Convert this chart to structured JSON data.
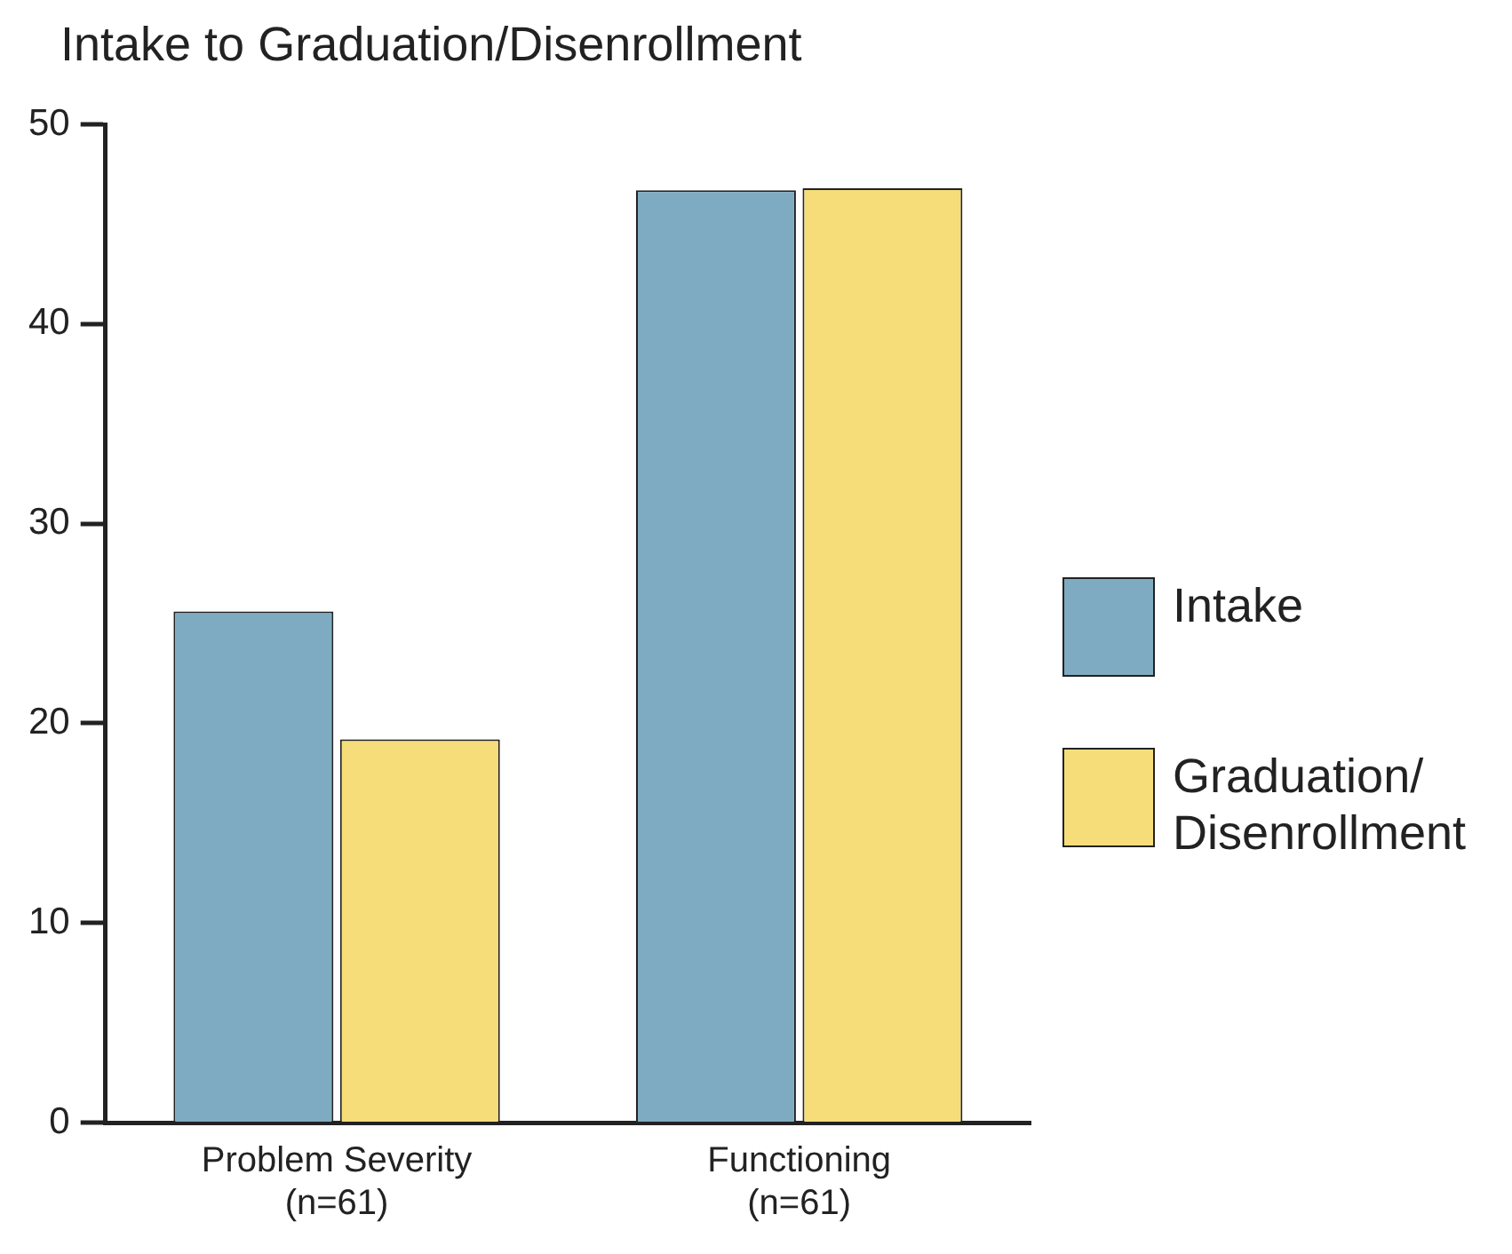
{
  "chart_data": {
    "type": "bar",
    "title": "Intake to Graduation/Disenrollment",
    "categories": [
      "Problem Severity\n(n=61)",
      "Functioning\n(n=61)"
    ],
    "series": [
      {
        "name": "Intake",
        "color": "#7eabc2",
        "values": [
          25.6,
          46.7
        ]
      },
      {
        "name": "Graduation/Disenrollment",
        "color": "#f6dd7a",
        "values": [
          19.2,
          46.8
        ]
      }
    ],
    "ylim": [
      0,
      50
    ],
    "yticks": [
      0,
      10,
      20,
      30,
      40,
      50
    ],
    "grid": false,
    "legend": "right"
  }
}
